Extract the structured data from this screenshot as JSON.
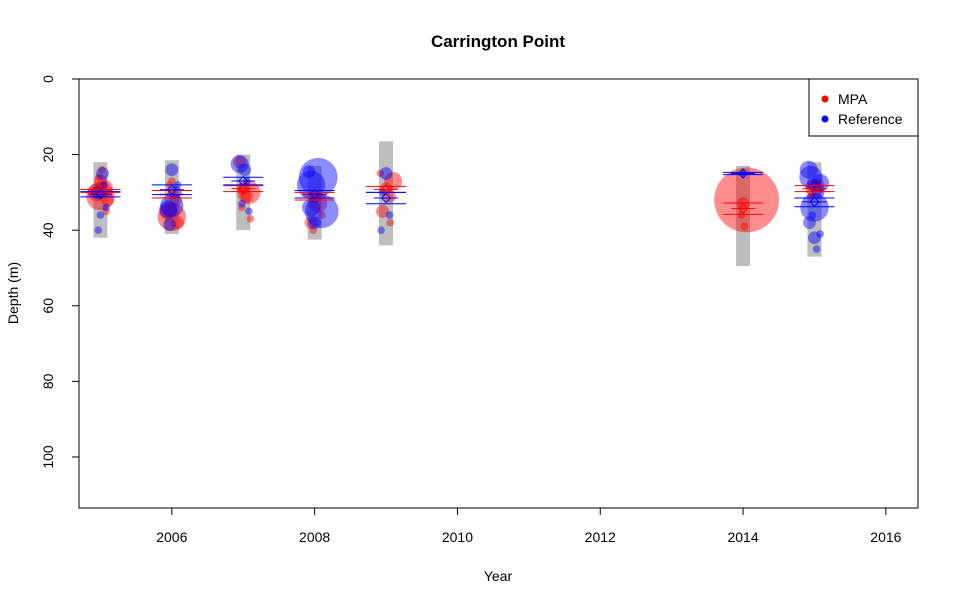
{
  "chart_data": {
    "type": "scatter",
    "title": "Carrington Point",
    "xlabel": "Year",
    "ylabel": "Depth (m)",
    "xlim": [
      2004.7,
      2016.45
    ],
    "ylim": [
      0,
      113.5
    ],
    "y_reversed": true,
    "xticks": [
      2006,
      2008,
      2010,
      2012,
      2014,
      2016
    ],
    "yticks": [
      0,
      20,
      40,
      60,
      80,
      100
    ],
    "legend": {
      "position": "top-right",
      "entries": [
        "MPA",
        "Reference"
      ]
    },
    "colors": {
      "MPA": "#ff0000",
      "Reference": "#0000ff",
      "range_bar": "#bebebe"
    },
    "depth_ranges": [
      {
        "year": 2005,
        "min": 22,
        "max": 42
      },
      {
        "year": 2006,
        "min": 21.5,
        "max": 41
      },
      {
        "year": 2007,
        "min": 20,
        "max": 40
      },
      {
        "year": 2008,
        "min": 23,
        "max": 42.5
      },
      {
        "year": 2009,
        "min": 16.5,
        "max": 44
      },
      {
        "year": 2014,
        "min": 23,
        "max": 49.5
      },
      {
        "year": 2015,
        "min": 22,
        "max": 47
      }
    ],
    "series": [
      {
        "name": "MPA",
        "summary": [
          {
            "year": 2005,
            "lower": 29.2,
            "mean": 29.6,
            "upper": 30.0
          },
          {
            "year": 2006,
            "lower": 29.5,
            "mean": 30.5,
            "upper": 31.5
          },
          {
            "year": 2007,
            "lower": 28.2,
            "mean": 29.0,
            "upper": 29.8
          },
          {
            "year": 2008,
            "lower": 30.0,
            "mean": 31.0,
            "upper": 32.0
          },
          {
            "year": 2009,
            "lower": 28.4,
            "mean": 29.2,
            "upper": 30.0
          },
          {
            "year": 2014,
            "lower": 32.8,
            "mean": 34.3,
            "upper": 35.8
          },
          {
            "year": 2015,
            "lower": 28.2,
            "mean": 29.0,
            "upper": 29.8
          }
        ],
        "points": [
          {
            "x": 2005.0,
            "y": 31,
            "size": 5
          },
          {
            "x": 2004.95,
            "y": 30,
            "size": 3
          },
          {
            "x": 2005.05,
            "y": 29,
            "size": 3
          },
          {
            "x": 2005.1,
            "y": 32,
            "size": 2
          },
          {
            "x": 2005.0,
            "y": 27,
            "size": 2
          },
          {
            "x": 2005.08,
            "y": 35,
            "size": 1
          },
          {
            "x": 2004.98,
            "y": 26,
            "size": 1
          },
          {
            "x": 2005.02,
            "y": 24,
            "size": 1
          },
          {
            "x": 2006.0,
            "y": 36.5,
            "size": 5
          },
          {
            "x": 2005.95,
            "y": 35,
            "size": 3
          },
          {
            "x": 2006.05,
            "y": 32,
            "size": 2
          },
          {
            "x": 2006.08,
            "y": 38,
            "size": 2
          },
          {
            "x": 2006.0,
            "y": 27,
            "size": 1
          },
          {
            "x": 2005.97,
            "y": 28,
            "size": 1
          },
          {
            "x": 2007.08,
            "y": 30,
            "size": 4
          },
          {
            "x": 2007.0,
            "y": 29,
            "size": 2
          },
          {
            "x": 2006.95,
            "y": 22,
            "size": 2
          },
          {
            "x": 2007.05,
            "y": 31,
            "size": 2
          },
          {
            "x": 2007.1,
            "y": 37,
            "size": 1
          },
          {
            "x": 2006.98,
            "y": 34,
            "size": 1
          },
          {
            "x": 2008.05,
            "y": 33,
            "size": 3
          },
          {
            "x": 2008.0,
            "y": 31,
            "size": 2
          },
          {
            "x": 2007.95,
            "y": 38,
            "size": 2
          },
          {
            "x": 2008.1,
            "y": 36,
            "size": 1
          },
          {
            "x": 2007.98,
            "y": 40,
            "size": 1
          },
          {
            "x": 2009.1,
            "y": 27,
            "size": 3
          },
          {
            "x": 2009.0,
            "y": 29,
            "size": 2
          },
          {
            "x": 2008.95,
            "y": 35,
            "size": 2
          },
          {
            "x": 2009.05,
            "y": 31,
            "size": 2
          },
          {
            "x": 2008.92,
            "y": 25,
            "size": 1
          },
          {
            "x": 2009.06,
            "y": 38,
            "size": 1
          },
          {
            "x": 2014.05,
            "y": 32,
            "size": 12
          },
          {
            "x": 2014.0,
            "y": 33,
            "size": 2
          },
          {
            "x": 2013.98,
            "y": 36,
            "size": 1
          },
          {
            "x": 2014.02,
            "y": 39,
            "size": 1
          },
          {
            "x": 2015.0,
            "y": 29,
            "size": 3
          },
          {
            "x": 2015.05,
            "y": 28,
            "size": 2
          },
          {
            "x": 2014.95,
            "y": 31,
            "size": 1
          }
        ]
      },
      {
        "name": "Reference",
        "summary": [
          {
            "year": 2005,
            "lower": 29.8,
            "mean": 30.5,
            "upper": 31.2
          },
          {
            "year": 2006,
            "lower": 28.0,
            "mean": 29.3,
            "upper": 30.6
          },
          {
            "year": 2007,
            "lower": 26.0,
            "mean": 27.0,
            "upper": 28.0
          },
          {
            "year": 2008,
            "lower": 29.5,
            "mean": 30.5,
            "upper": 31.5
          },
          {
            "year": 2009,
            "lower": 30.0,
            "mean": 31.5,
            "upper": 33.0
          },
          {
            "year": 2014,
            "lower": 24.7,
            "mean": 25.0,
            "upper": 25.3
          },
          {
            "year": 2015,
            "lower": 31.5,
            "mean": 32.5,
            "upper": 33.8
          }
        ],
        "points": [
          {
            "x": 2005.03,
            "y": 25,
            "size": 2
          },
          {
            "x": 2004.96,
            "y": 30,
            "size": 2
          },
          {
            "x": 2005.05,
            "y": 28,
            "size": 1
          },
          {
            "x": 2005.0,
            "y": 36,
            "size": 1
          },
          {
            "x": 2004.97,
            "y": 40,
            "size": 1
          },
          {
            "x": 2005.08,
            "y": 34,
            "size": 1
          },
          {
            "x": 2006.0,
            "y": 33.5,
            "size": 4
          },
          {
            "x": 2005.97,
            "y": 38.5,
            "size": 2
          },
          {
            "x": 2006.05,
            "y": 30,
            "size": 2
          },
          {
            "x": 2006.0,
            "y": 24,
            "size": 2
          },
          {
            "x": 2005.95,
            "y": 34.5,
            "size": 3
          },
          {
            "x": 2006.08,
            "y": 28,
            "size": 1
          },
          {
            "x": 2006.95,
            "y": 22.5,
            "size": 3
          },
          {
            "x": 2007.02,
            "y": 24,
            "size": 2
          },
          {
            "x": 2007.05,
            "y": 27,
            "size": 1
          },
          {
            "x": 2006.98,
            "y": 33,
            "size": 1
          },
          {
            "x": 2007.08,
            "y": 35,
            "size": 1
          },
          {
            "x": 2008.05,
            "y": 26,
            "size": 7
          },
          {
            "x": 2007.95,
            "y": 28,
            "size": 5
          },
          {
            "x": 2008.1,
            "y": 35,
            "size": 6
          },
          {
            "x": 2007.95,
            "y": 34,
            "size": 3
          },
          {
            "x": 2008.0,
            "y": 38,
            "size": 2
          },
          {
            "x": 2007.92,
            "y": 24.5,
            "size": 2
          },
          {
            "x": 2009.0,
            "y": 25,
            "size": 2
          },
          {
            "x": 2008.95,
            "y": 30,
            "size": 1
          },
          {
            "x": 2009.05,
            "y": 36,
            "size": 1
          },
          {
            "x": 2008.93,
            "y": 40,
            "size": 1
          },
          {
            "x": 2014.0,
            "y": 25,
            "size": 1
          },
          {
            "x": 2015.0,
            "y": 34,
            "size": 5
          },
          {
            "x": 2014.95,
            "y": 26,
            "size": 4
          },
          {
            "x": 2014.92,
            "y": 24,
            "size": 3
          },
          {
            "x": 2015.08,
            "y": 27.5,
            "size": 3
          },
          {
            "x": 2014.98,
            "y": 28,
            "size": 2
          },
          {
            "x": 2015.05,
            "y": 30,
            "size": 2
          },
          {
            "x": 2014.93,
            "y": 38,
            "size": 2
          },
          {
            "x": 2015.0,
            "y": 42,
            "size": 2
          },
          {
            "x": 2015.08,
            "y": 41,
            "size": 1
          },
          {
            "x": 2015.03,
            "y": 45,
            "size": 1
          },
          {
            "x": 2014.97,
            "y": 36,
            "size": 1
          }
        ]
      }
    ]
  }
}
